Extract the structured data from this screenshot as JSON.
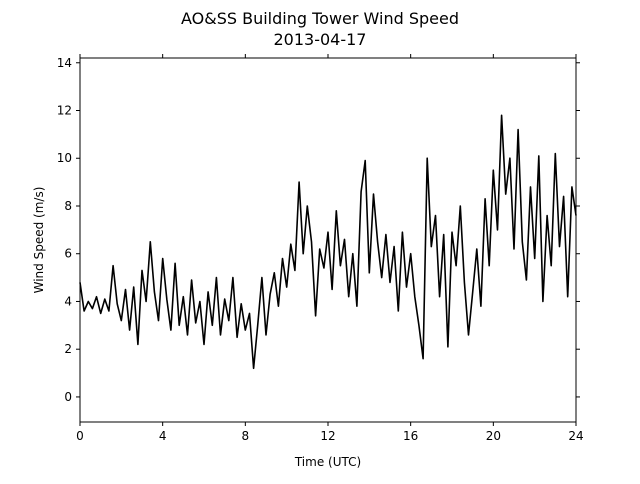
{
  "chart_data": {
    "type": "line",
    "title": "AO&SS Building Tower Wind Speed",
    "subtitle": "2013-04-17",
    "x_label": "Time (UTC)",
    "y_label": "Wind Speed (m/s)",
    "xlim": [
      0,
      24
    ],
    "xticks": [
      0,
      4,
      8,
      12,
      16,
      20,
      24
    ],
    "ylim": [
      -1.05,
      14.2
    ],
    "yticks": [
      0,
      2,
      4,
      6,
      8,
      10,
      12,
      14
    ],
    "series": [
      {
        "color": "#000000",
        "x": [
          0,
          0.2,
          0.4,
          0.6,
          0.8,
          1,
          1.2,
          1.4,
          1.6,
          1.8,
          2,
          2.2,
          2.4,
          2.6,
          2.8,
          3,
          3.2,
          3.4,
          3.6,
          3.8,
          4,
          4.2,
          4.4,
          4.6,
          4.8,
          5,
          5.2,
          5.4,
          5.6,
          5.8,
          6,
          6.2,
          6.4,
          6.6,
          6.8,
          7,
          7.2,
          7.4,
          7.6,
          7.8,
          8,
          8.2,
          8.4,
          8.6,
          8.8,
          9,
          9.2,
          9.4,
          9.6,
          9.8,
          10,
          10.2,
          10.4,
          10.6,
          10.8,
          11,
          11.2,
          11.4,
          11.6,
          11.8,
          12,
          12.2,
          12.4,
          12.6,
          12.8,
          13,
          13.2,
          13.4,
          13.6,
          13.8,
          14,
          14.2,
          14.4,
          14.6,
          14.8,
          15,
          15.2,
          15.4,
          15.6,
          15.8,
          16,
          16.2,
          16.4,
          16.6,
          16.8,
          17,
          17.2,
          17.4,
          17.6,
          17.8,
          18,
          18.2,
          18.4,
          18.6,
          18.8,
          19,
          19.2,
          19.4,
          19.6,
          19.8,
          20,
          20.2,
          20.4,
          20.6,
          20.8,
          21,
          21.2,
          21.4,
          21.6,
          21.8,
          22,
          22.2,
          22.4,
          22.6,
          22.8,
          23,
          23.2,
          23.4,
          23.6,
          23.8,
          24
        ],
        "values": [
          4.8,
          3.6,
          4.0,
          3.7,
          4.2,
          3.5,
          4.1,
          3.6,
          5.5,
          3.9,
          3.2,
          4.5,
          2.8,
          4.6,
          2.2,
          5.3,
          4.0,
          6.5,
          4.4,
          3.2,
          5.8,
          4.1,
          2.8,
          5.6,
          3.0,
          4.2,
          2.6,
          4.9,
          3.1,
          4.0,
          2.2,
          4.4,
          3.0,
          5.0,
          2.6,
          4.1,
          3.2,
          5.0,
          2.5,
          3.9,
          2.8,
          3.5,
          1.2,
          3.0,
          5.0,
          2.6,
          4.3,
          5.2,
          3.8,
          5.8,
          4.6,
          6.4,
          5.3,
          9.0,
          6.0,
          8.0,
          6.5,
          3.4,
          6.2,
          5.4,
          6.9,
          4.5,
          7.8,
          5.5,
          6.6,
          4.2,
          6.0,
          3.8,
          8.6,
          9.9,
          5.2,
          8.5,
          6.5,
          5.0,
          6.8,
          4.8,
          6.3,
          3.6,
          6.9,
          4.6,
          6.0,
          4.2,
          3.0,
          1.6,
          10.0,
          6.3,
          7.6,
          4.2,
          6.8,
          2.1,
          6.9,
          5.5,
          8.0,
          4.8,
          2.6,
          4.4,
          6.2,
          3.8,
          8.3,
          5.5,
          9.5,
          7.0,
          11.8,
          8.5,
          10.0,
          6.2,
          11.2,
          6.5,
          4.9,
          8.8,
          5.8,
          10.1,
          4.0,
          7.6,
          5.5,
          10.2,
          6.3,
          8.4,
          4.2,
          8.8,
          7.6
        ]
      }
    ]
  }
}
